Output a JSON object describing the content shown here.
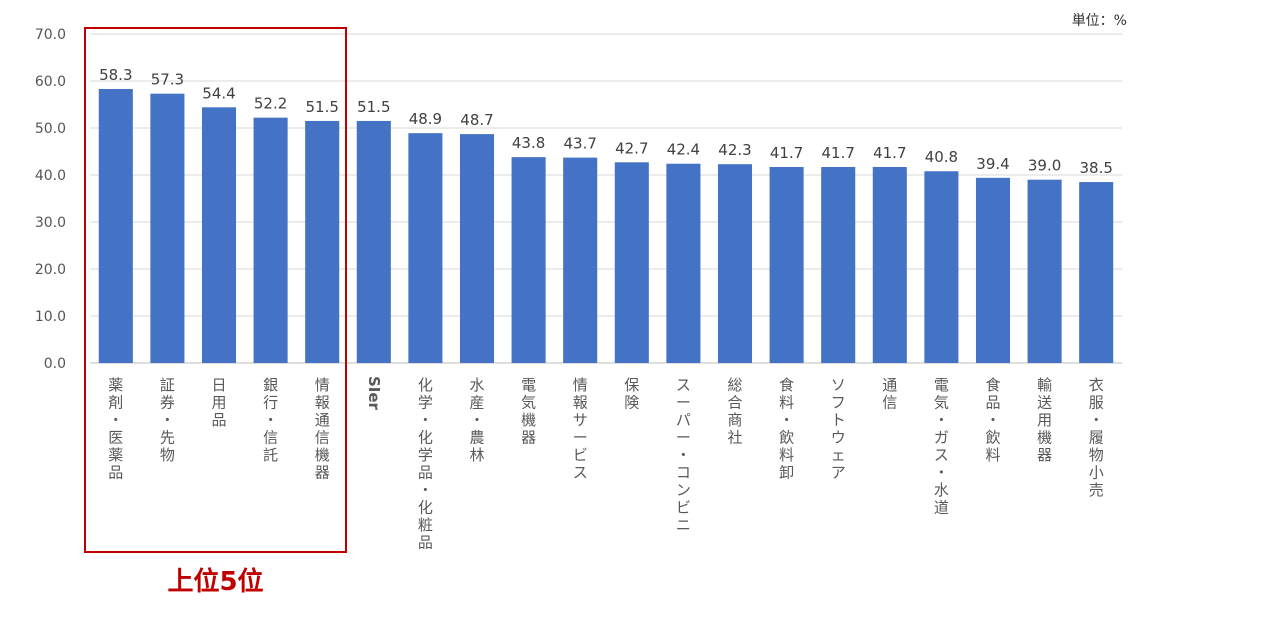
{
  "unit_label": "単位：%",
  "highlight_label": "上位5位",
  "colors": {
    "bar": "#4472c4",
    "highlight": "#c00000",
    "grid": "#d9d9d9"
  },
  "chart_data": {
    "type": "bar",
    "categories": [
      "薬剤・医薬品",
      "証券・先物",
      "日用品",
      "銀行・信託",
      "情報通信機器",
      "SIer",
      "化学・化学品・化粧品",
      "水産・農林",
      "電気機器",
      "情報サービス",
      "保険",
      "スーパー・コンビニ",
      "総合商社",
      "食料・飲料卸",
      "ソフトウェア",
      "通信",
      "電気・ガス・水道",
      "食品・飲料",
      "輸送用機器",
      "衣服・履物小売"
    ],
    "values": [
      58.3,
      57.3,
      54.4,
      52.2,
      51.5,
      51.5,
      48.9,
      48.7,
      43.8,
      43.7,
      42.7,
      42.4,
      42.3,
      41.7,
      41.7,
      41.7,
      40.8,
      39.4,
      39.0,
      38.5
    ],
    "ylim": [
      0,
      70
    ],
    "yticks": [
      "0.0",
      "10.0",
      "20.0",
      "30.0",
      "40.0",
      "50.0",
      "60.0",
      "70.0"
    ],
    "grid": true
  }
}
